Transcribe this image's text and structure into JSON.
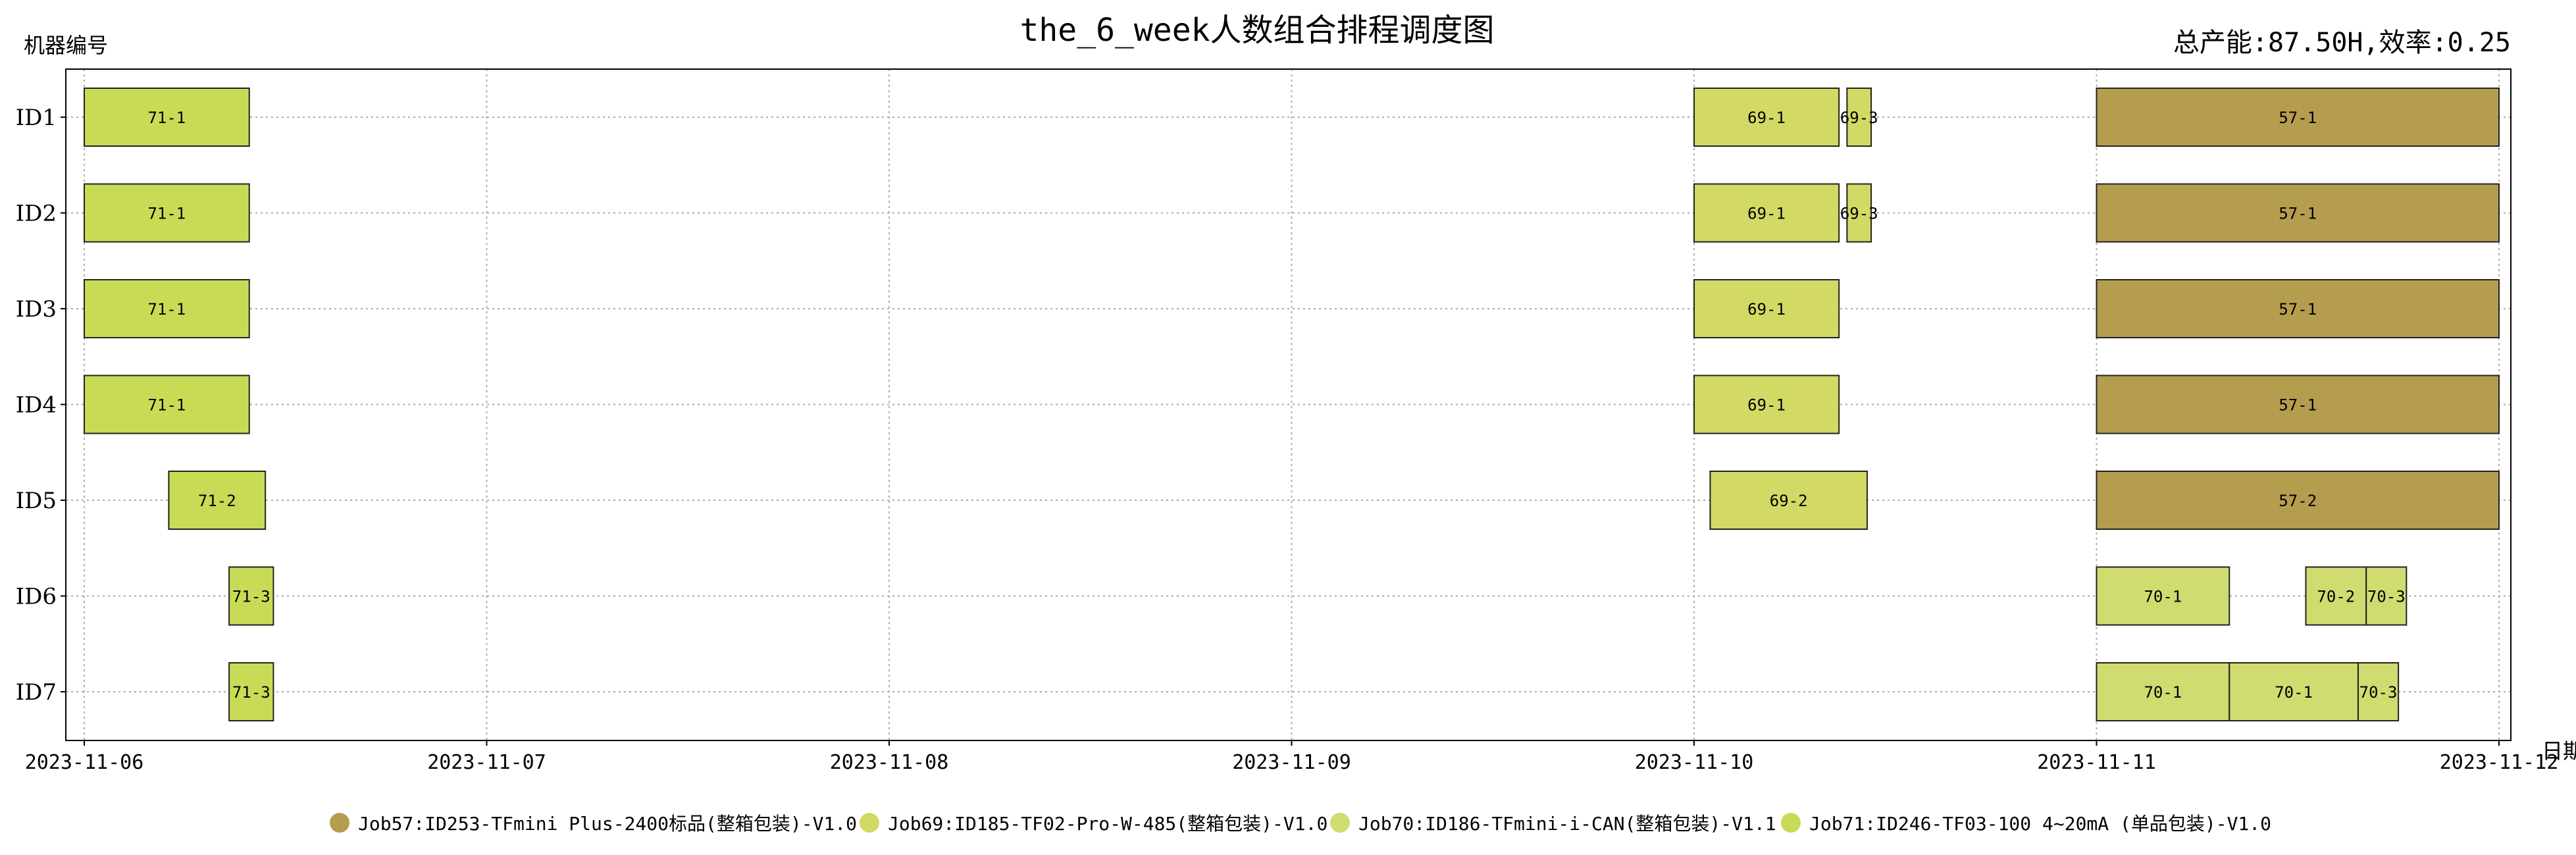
{
  "title": "the_6_week人数组合排程调度图",
  "summary": "总产能:87.50H,效率:0.25",
  "ylabel": "机器编号",
  "xlabel": "日期",
  "chart_data": {
    "type": "gantt",
    "title": "the_6_week人数组合排程调度图",
    "ylabel": "机器编号",
    "xlabel": "日期",
    "xlim": [
      "2023-11-06",
      "2023-11-12"
    ],
    "x_ticks": [
      "2023-11-06",
      "2023-11-07",
      "2023-11-08",
      "2023-11-09",
      "2023-11-10",
      "2023-11-11",
      "2023-11-12"
    ],
    "grid": true,
    "legend_position": "bottom",
    "machines": [
      "ID1",
      "ID2",
      "ID3",
      "ID4",
      "ID5",
      "ID6",
      "ID7"
    ],
    "jobs": [
      {
        "name": "Job57:ID253-TFmini Plus-2400标品(整箱包装)-V1.0",
        "color": "#b59d4f"
      },
      {
        "name": "Job69:ID185-TF02-Pro-W-485(整箱包装)-V1.0",
        "color": "#d2d965"
      },
      {
        "name": "Job70:ID186-TFmini-i-CAN(整箱包装)-V1.1",
        "color": "#d0db70"
      },
      {
        "name": "Job71:ID246-TF03-100 4~20mA (单品包装)-V1.0",
        "color": "#c9db55"
      }
    ],
    "tasks": [
      {
        "machine": "ID1",
        "label": "71-1",
        "job": 3,
        "start": 0.0,
        "end": 0.41
      },
      {
        "machine": "ID2",
        "label": "71-1",
        "job": 3,
        "start": 0.0,
        "end": 0.41
      },
      {
        "machine": "ID3",
        "label": "71-1",
        "job": 3,
        "start": 0.0,
        "end": 0.41
      },
      {
        "machine": "ID4",
        "label": "71-1",
        "job": 3,
        "start": 0.0,
        "end": 0.41
      },
      {
        "machine": "ID5",
        "label": "71-2",
        "job": 3,
        "start": 0.21,
        "end": 0.45
      },
      {
        "machine": "ID6",
        "label": "71-3",
        "job": 3,
        "start": 0.36,
        "end": 0.47
      },
      {
        "machine": "ID7",
        "label": "71-3",
        "job": 3,
        "start": 0.36,
        "end": 0.47
      },
      {
        "machine": "ID1",
        "label": "69-1",
        "job": 1,
        "start": 4.0,
        "end": 4.36
      },
      {
        "machine": "ID1",
        "label": "69-3",
        "job": 1,
        "start": 4.38,
        "end": 4.44
      },
      {
        "machine": "ID2",
        "label": "69-1",
        "job": 1,
        "start": 4.0,
        "end": 4.36
      },
      {
        "machine": "ID2",
        "label": "69-3",
        "job": 1,
        "start": 4.38,
        "end": 4.44
      },
      {
        "machine": "ID3",
        "label": "69-1",
        "job": 1,
        "start": 4.0,
        "end": 4.36
      },
      {
        "machine": "ID4",
        "label": "69-1",
        "job": 1,
        "start": 4.0,
        "end": 4.36
      },
      {
        "machine": "ID5",
        "label": "69-2",
        "job": 1,
        "start": 4.04,
        "end": 4.43
      },
      {
        "machine": "ID1",
        "label": "57-1",
        "job": 0,
        "start": 5.0,
        "end": 6.0
      },
      {
        "machine": "ID2",
        "label": "57-1",
        "job": 0,
        "start": 5.0,
        "end": 6.0
      },
      {
        "machine": "ID3",
        "label": "57-1",
        "job": 0,
        "start": 5.0,
        "end": 6.0
      },
      {
        "machine": "ID4",
        "label": "57-1",
        "job": 0,
        "start": 5.0,
        "end": 6.0
      },
      {
        "machine": "ID5",
        "label": "57-2",
        "job": 0,
        "start": 5.0,
        "end": 6.0
      },
      {
        "machine": "ID6",
        "label": "70-1",
        "job": 2,
        "start": 5.0,
        "end": 5.33
      },
      {
        "machine": "ID6",
        "label": "70-2",
        "job": 2,
        "start": 5.52,
        "end": 5.67
      },
      {
        "machine": "ID6",
        "label": "70-3",
        "job": 2,
        "start": 5.67,
        "end": 5.77
      },
      {
        "machine": "ID7",
        "label": "70-1",
        "job": 2,
        "start": 5.0,
        "end": 5.33
      },
      {
        "machine": "ID7",
        "label": "70-1",
        "job": 2,
        "start": 5.33,
        "end": 5.65
      },
      {
        "machine": "ID7",
        "label": "70-3",
        "job": 2,
        "start": 5.65,
        "end": 5.75
      }
    ]
  }
}
